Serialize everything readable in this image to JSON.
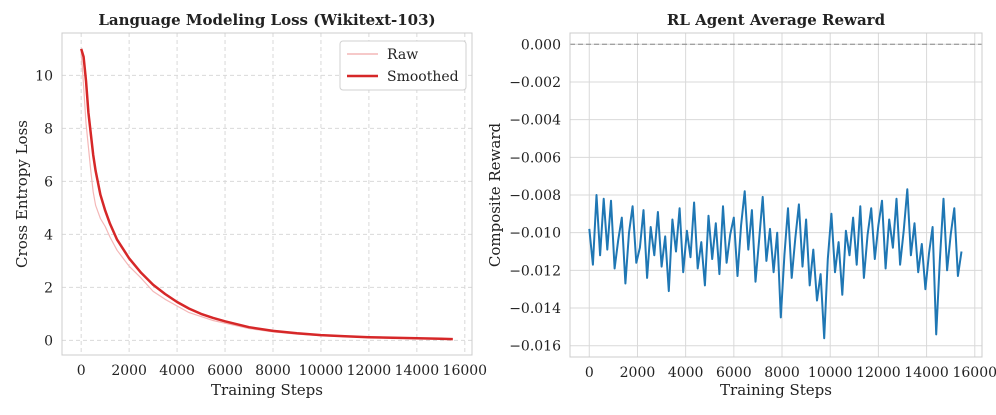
{
  "figure": {
    "colors": {
      "raw": "#f4b7b7",
      "smoothed": "#d62728",
      "reward": "#1f77b4",
      "grid": "#d9d9d9",
      "zero_line": "#888888"
    }
  },
  "chart_data": [
    {
      "type": "line",
      "title": "Language Modeling Loss (Wikitext-103)",
      "xlabel": "Training Steps",
      "ylabel": "Cross Entropy Loss",
      "xlim": [
        -800,
        16300
      ],
      "ylim": [
        -0.55,
        11.6
      ],
      "xticks": [
        0,
        2000,
        4000,
        6000,
        8000,
        10000,
        12000,
        14000,
        16000
      ],
      "xtick_labels": [
        "0",
        "2000",
        "4000",
        "6000",
        "8000",
        "10000",
        "12000",
        "14000",
        "16000"
      ],
      "yticks": [
        0,
        2,
        4,
        6,
        8,
        10
      ],
      "ytick_labels": [
        "0",
        "2",
        "4",
        "6",
        "8",
        "10"
      ],
      "grid": true,
      "grid_style": "dashed",
      "legend": {
        "position": "top-right",
        "entries": [
          "Raw",
          "Smoothed"
        ]
      },
      "series": [
        {
          "name": "Raw",
          "style": "thin-light",
          "x": [
            0,
            100,
            200,
            300,
            400,
            500,
            600,
            800,
            1000,
            1200,
            1500,
            2000,
            2500,
            3000,
            3500,
            4000,
            4500,
            5000,
            5500,
            6000,
            7000,
            8000,
            9000,
            10000,
            11000,
            12000,
            13000,
            14000,
            15000,
            15500
          ],
          "y": [
            10.9,
            9.6,
            8.2,
            7.3,
            6.4,
            5.6,
            5.1,
            4.6,
            4.3,
            3.9,
            3.4,
            2.8,
            2.35,
            1.85,
            1.55,
            1.3,
            1.05,
            0.9,
            0.75,
            0.65,
            0.45,
            0.32,
            0.24,
            0.18,
            0.14,
            0.11,
            0.09,
            0.07,
            0.06,
            0.05
          ]
        },
        {
          "name": "Smoothed",
          "style": "thick",
          "x": [
            0,
            100,
            200,
            300,
            400,
            500,
            600,
            800,
            1000,
            1200,
            1500,
            2000,
            2500,
            3000,
            3500,
            4000,
            4500,
            5000,
            5500,
            6000,
            7000,
            8000,
            9000,
            10000,
            11000,
            12000,
            13000,
            14000,
            15000,
            15500
          ],
          "y": [
            11.0,
            10.7,
            9.8,
            8.6,
            7.8,
            7.0,
            6.4,
            5.5,
            4.9,
            4.4,
            3.8,
            3.1,
            2.55,
            2.1,
            1.75,
            1.45,
            1.2,
            1.0,
            0.85,
            0.72,
            0.5,
            0.36,
            0.27,
            0.2,
            0.16,
            0.12,
            0.1,
            0.08,
            0.06,
            0.05
          ]
        }
      ]
    },
    {
      "type": "line",
      "title": "RL Agent Average Reward",
      "xlabel": "Training Steps",
      "ylabel": "Composite Reward",
      "xlim": [
        -800,
        16300
      ],
      "ylim": [
        -0.0166,
        0.0006
      ],
      "xticks": [
        0,
        2000,
        4000,
        6000,
        8000,
        10000,
        12000,
        14000,
        16000
      ],
      "xtick_labels": [
        "0",
        "2000",
        "4000",
        "6000",
        "8000",
        "10000",
        "12000",
        "14000",
        "16000"
      ],
      "yticks": [
        0.0,
        -0.002,
        -0.004,
        -0.006,
        -0.008,
        -0.01,
        -0.012,
        -0.014,
        -0.016
      ],
      "ytick_labels": [
        "0.000",
        "−0.002",
        "−0.004",
        "−0.006",
        "−0.008",
        "−0.010",
        "−0.012",
        "−0.014",
        "−0.016"
      ],
      "grid": true,
      "grid_style": "solid",
      "reference_line": {
        "y": 0.0,
        "style": "dashed"
      },
      "series": [
        {
          "name": "Average Reward",
          "x": [
            0,
            150,
            300,
            450,
            600,
            750,
            900,
            1050,
            1200,
            1350,
            1500,
            1650,
            1800,
            1950,
            2100,
            2250,
            2400,
            2550,
            2700,
            2850,
            3000,
            3150,
            3300,
            3450,
            3600,
            3750,
            3900,
            4050,
            4200,
            4350,
            4500,
            4650,
            4800,
            4950,
            5100,
            5250,
            5400,
            5550,
            5700,
            5850,
            6000,
            6150,
            6300,
            6450,
            6600,
            6750,
            6900,
            7050,
            7200,
            7350,
            7500,
            7650,
            7800,
            7950,
            8100,
            8250,
            8400,
            8550,
            8700,
            8850,
            9000,
            9150,
            9300,
            9450,
            9600,
            9750,
            9900,
            10050,
            10200,
            10350,
            10500,
            10650,
            10800,
            10950,
            11100,
            11250,
            11400,
            11550,
            11700,
            11850,
            12000,
            12150,
            12300,
            12450,
            12600,
            12750,
            12900,
            13050,
            13200,
            13350,
            13500,
            13650,
            13800,
            13950,
            14100,
            14250,
            14400,
            14550,
            14700,
            14850,
            15000,
            15150,
            15300,
            15450
          ],
          "y": [
            -0.0098,
            -0.0117,
            -0.008,
            -0.0112,
            -0.0082,
            -0.0109,
            -0.0083,
            -0.0119,
            -0.0104,
            -0.0092,
            -0.0127,
            -0.01,
            -0.0086,
            -0.0116,
            -0.0108,
            -0.0088,
            -0.0124,
            -0.0097,
            -0.0112,
            -0.0089,
            -0.0118,
            -0.0102,
            -0.0131,
            -0.0093,
            -0.011,
            -0.0087,
            -0.0121,
            -0.0099,
            -0.0113,
            -0.0084,
            -0.0119,
            -0.0105,
            -0.0128,
            -0.0091,
            -0.0114,
            -0.0095,
            -0.0122,
            -0.0086,
            -0.0116,
            -0.0101,
            -0.0092,
            -0.0123,
            -0.0096,
            -0.0078,
            -0.0109,
            -0.0088,
            -0.0126,
            -0.0104,
            -0.0081,
            -0.0115,
            -0.0098,
            -0.0121,
            -0.01,
            -0.0145,
            -0.0112,
            -0.0087,
            -0.0124,
            -0.0103,
            -0.0085,
            -0.0118,
            -0.0093,
            -0.0128,
            -0.0109,
            -0.0136,
            -0.0122,
            -0.0156,
            -0.0114,
            -0.009,
            -0.0121,
            -0.0105,
            -0.0133,
            -0.0099,
            -0.0112,
            -0.0092,
            -0.0117,
            -0.0086,
            -0.0124,
            -0.0101,
            -0.0087,
            -0.0114,
            -0.0096,
            -0.0083,
            -0.0119,
            -0.0093,
            -0.0108,
            -0.0082,
            -0.0117,
            -0.0099,
            -0.0077,
            -0.0112,
            -0.0095,
            -0.0121,
            -0.0106,
            -0.013,
            -0.0111,
            -0.0097,
            -0.0154,
            -0.0115,
            -0.0082,
            -0.012,
            -0.0101,
            -0.0087,
            -0.0123,
            -0.011
          ]
        }
      ]
    }
  ]
}
